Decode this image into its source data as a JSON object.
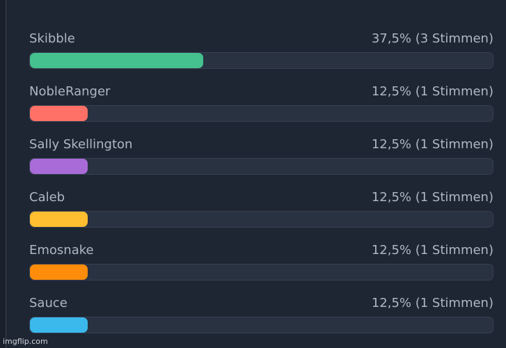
{
  "poll": {
    "options": [
      {
        "name": "Skibble",
        "result": "37,5% (3 Stimmen)",
        "fraction": 0.375,
        "color": "#45c08f"
      },
      {
        "name": "NobleRanger",
        "result": "12,5% (1 Stimmen)",
        "fraction": 0.125,
        "color": "#ff7166"
      },
      {
        "name": "Sally Skellington",
        "result": "12,5% (1 Stimmen)",
        "fraction": 0.125,
        "color": "#a96bd7"
      },
      {
        "name": "Caleb",
        "result": "12,5% (1 Stimmen)",
        "fraction": 0.125,
        "color": "#ffbf30"
      },
      {
        "name": "Emosnake",
        "result": "12,5% (1 Stimmen)",
        "fraction": 0.125,
        "color": "#ff8c0a"
      },
      {
        "name": "Sauce",
        "result": "12,5% (1 Stimmen)",
        "fraction": 0.125,
        "color": "#3bb9ec"
      }
    ]
  },
  "watermark": "imgflip.com"
}
